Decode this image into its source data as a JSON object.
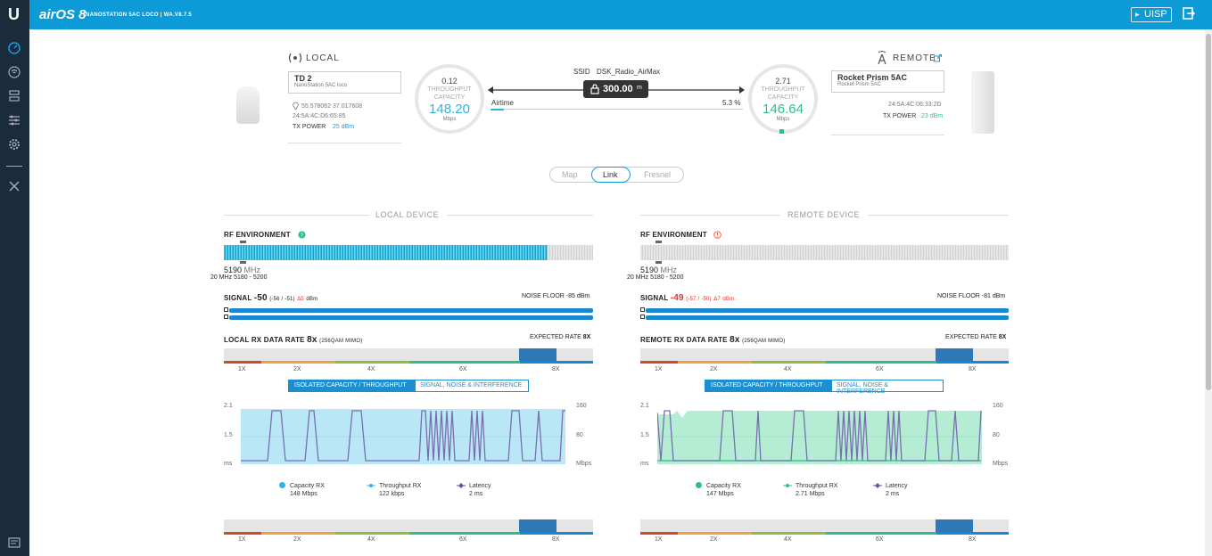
{
  "header": {
    "brand": "airOS 8",
    "device_title": "NANOSTATION 5AC LOCO | WA.V8.7.5",
    "uisp_label": "UISP",
    "colors": {
      "top": "#0d9bd8",
      "sidebar": "#1a2b3c"
    }
  },
  "sidebar": {
    "icons": [
      "dashboard-icon",
      "wireless-icon",
      "network-icon",
      "services-icon",
      "system-icon",
      "tools-icon",
      "log-icon"
    ]
  },
  "link": {
    "local": {
      "heading": "LOCAL",
      "name": "TD 2",
      "model": "NanoStation 5AC loco",
      "coords": "55.578062 37.017608",
      "mac": "24:5A:4C:D6:65:85",
      "tx_power_label": "TX POWER",
      "tx_power": "25 dBm",
      "gauge_top": "0.12",
      "gauge_cap": "THROUGHPUT\nCAPACITY",
      "gauge_big": "148.20",
      "gauge_unit": "Mbps"
    },
    "remote": {
      "heading": "REMOTE",
      "name": "Rocket Prism 5AC",
      "model": "Rocket Prism 5AC",
      "mac": "24:5A:4C:06:33:2D",
      "tx_power_label": "TX POWER",
      "tx_power": "23 dBm",
      "gauge_top": "2.71",
      "gauge_cap": "THROUGHPUT\nCAPACITY",
      "gauge_big": "146.64",
      "gauge_unit": "Mbps"
    },
    "ssid_label": "SSID",
    "ssid": "DSK_Radio_AirMax",
    "distance": "300.00",
    "distance_unit": "m",
    "airtime_label": "Airtime",
    "airtime": "5.3 %"
  },
  "view_tabs": {
    "map": "Map",
    "link": "Link",
    "fresnel": "Fresnel"
  },
  "panels": {
    "local": {
      "title": "LOCAL DEVICE",
      "rf_label": "RF ENVIRONMENT",
      "freq": "5190",
      "freq_unit": "MHz",
      "width": "20",
      "width_unit": "MHz",
      "range": "5180 - 5200",
      "signal_label": "SIGNAL",
      "signal": "-50",
      "signal_detail": "(-56 / -51)",
      "signal_delta": "Δ5",
      "signal_unit": "dBm",
      "noise_label": "NOISE FLOOR",
      "noise": "-85 dBm",
      "rx_label": "LOCAL RX DATA RATE",
      "rx_rate": "8x",
      "rx_mod": "(256QAM MIMO)",
      "expected_label": "EXPECTED RATE",
      "expected": "8X",
      "tab_on": "ISOLATED CAPACITY / THROUGHPUT",
      "tab_off": "SIGNAL, NOISE & INTERFERENCE",
      "axis_left": [
        "2.1",
        "1.5",
        "ms"
      ],
      "axis_right": [
        "160",
        "80",
        "Mbps"
      ],
      "legend": [
        {
          "name": "Capacity RX",
          "value": "148 Mbps",
          "color": "#2db3e6"
        },
        {
          "name": "Throughput RX",
          "value": "122 kbps",
          "color": "#2db3e6"
        },
        {
          "name": "Latency",
          "value": "2 ms",
          "color": "#6a4fa2"
        }
      ]
    },
    "remote": {
      "title": "REMOTE DEVICE",
      "rf_label": "RF ENVIRONMENT",
      "freq": "5190",
      "freq_unit": "MHz",
      "width": "20",
      "width_unit": "MHz",
      "range": "5180 - 5200",
      "signal_label": "SIGNAL",
      "signal": "-49",
      "signal_detail": "(-57 / -50)",
      "signal_delta": "Δ7",
      "signal_unit": "dBm",
      "noise_label": "NOISE FLOOR",
      "noise": "-81 dBm",
      "rx_label": "REMOTE RX DATA RATE",
      "rx_rate": "8x",
      "rx_mod": "(256QAM MIMO)",
      "expected_label": "EXPECTED RATE",
      "expected": "8X",
      "tab_on": "ISOLATED CAPACITY / THROUGHPUT",
      "tab_off": "SIGNAL, NOISE & INTERFERENCE",
      "axis_left": [
        "2.1",
        "1.5",
        "ms"
      ],
      "axis_right": [
        "160",
        "80",
        "Mbps"
      ],
      "legend": [
        {
          "name": "Capacity RX",
          "value": "147 Mbps",
          "color": "#2dbf8a"
        },
        {
          "name": "Throughput RX",
          "value": "2.71 Mbps",
          "color": "#2dbf8a"
        },
        {
          "name": "Latency",
          "value": "2 ms",
          "color": "#6a4fa2"
        }
      ]
    }
  },
  "rate_ticks": [
    "1X",
    "2X",
    "4X",
    "6X",
    "8X"
  ]
}
